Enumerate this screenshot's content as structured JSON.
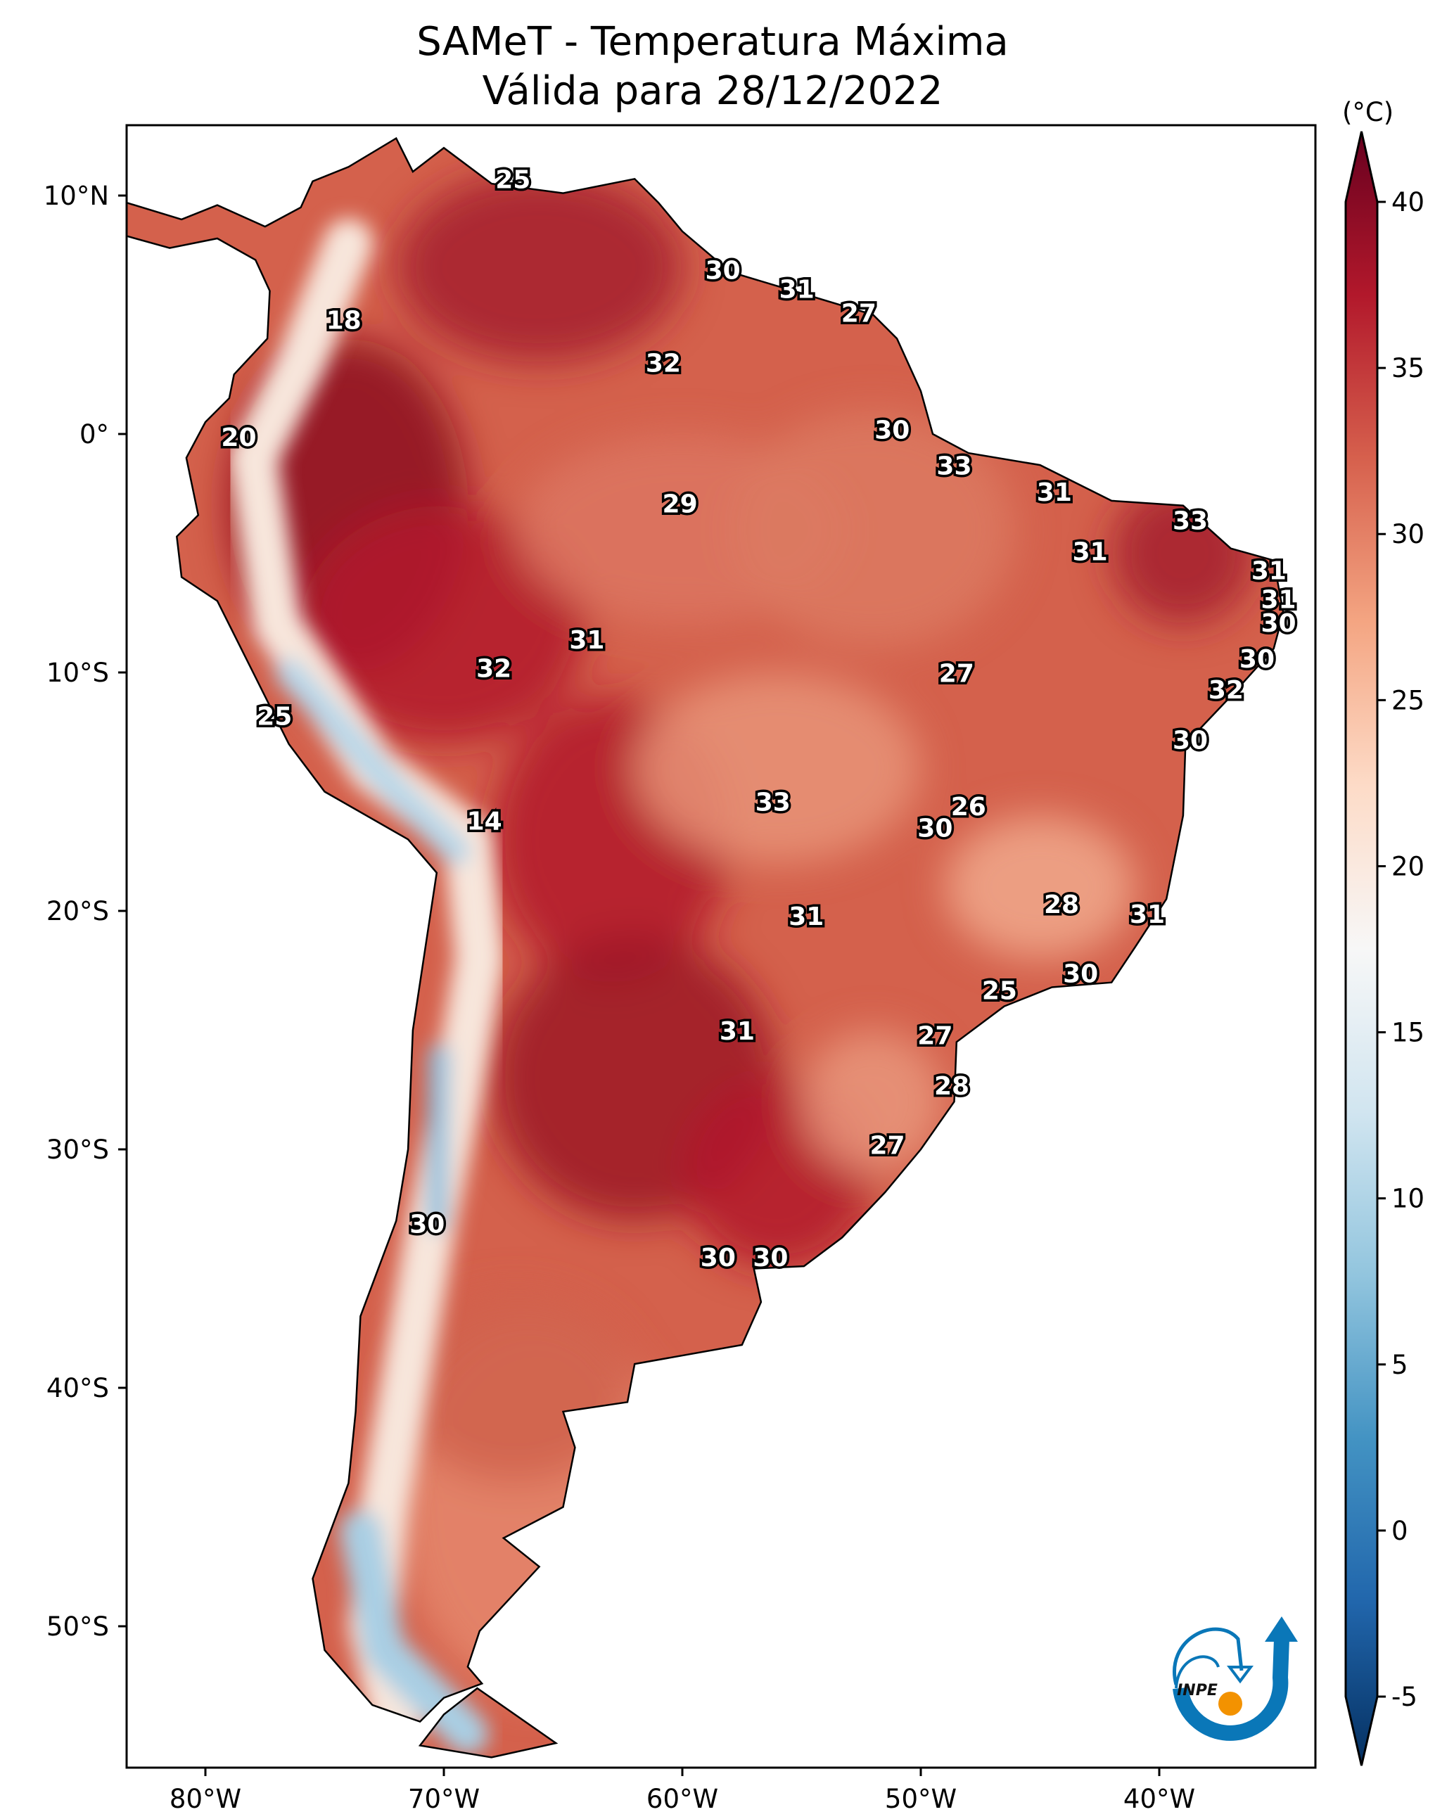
{
  "title_line1": "SAMeT - Temperatura Máxima",
  "title_line2": "Válida para 28/12/2022",
  "chart_data": {
    "type": "heatmap",
    "variable": "Temperatura Máxima",
    "units_label": "(°C)",
    "extent_lon": [
      -83.3,
      -33.5
    ],
    "extent_lat": [
      -55.9,
      13.0
    ],
    "x_ticks": [
      {
        "value": -80,
        "label": "80°W"
      },
      {
        "value": -70,
        "label": "70°W"
      },
      {
        "value": -60,
        "label": "60°W"
      },
      {
        "value": -50,
        "label": "50°W"
      },
      {
        "value": -40,
        "label": "40°W"
      }
    ],
    "y_ticks": [
      {
        "value": 10,
        "label": "10°N"
      },
      {
        "value": 0,
        "label": "0°"
      },
      {
        "value": -10,
        "label": "10°S"
      },
      {
        "value": -20,
        "label": "20°S"
      },
      {
        "value": -30,
        "label": "30°S"
      },
      {
        "value": -40,
        "label": "40°S"
      },
      {
        "value": -50,
        "label": "50°S"
      }
    ],
    "colorbar": {
      "range": [
        -5,
        40
      ],
      "extend": "both",
      "ticks": [
        "40",
        "35",
        "30",
        "25",
        "20",
        "15",
        "10",
        "5",
        "0",
        "-5"
      ],
      "colormap": [
        "#053061",
        "#2166ac",
        "#4393c3",
        "#92c5de",
        "#d1e5f0",
        "#f7f7f7",
        "#fddbc7",
        "#f4a582",
        "#d6604d",
        "#b2182b",
        "#67001f"
      ]
    },
    "annotations": [
      {
        "lon": -67.1,
        "lat": 10.6,
        "value": "25"
      },
      {
        "lon": -58.3,
        "lat": 6.8,
        "value": "30"
      },
      {
        "lon": -55.2,
        "lat": 6.0,
        "value": "31"
      },
      {
        "lon": -52.6,
        "lat": 5.0,
        "value": "27"
      },
      {
        "lon": -74.2,
        "lat": 4.7,
        "value": "18"
      },
      {
        "lon": -60.8,
        "lat": 2.9,
        "value": "32"
      },
      {
        "lon": -78.6,
        "lat": -0.2,
        "value": "20"
      },
      {
        "lon": -51.2,
        "lat": 0.1,
        "value": "30"
      },
      {
        "lon": -48.6,
        "lat": -1.4,
        "value": "33"
      },
      {
        "lon": -44.4,
        "lat": -2.5,
        "value": "31"
      },
      {
        "lon": -60.1,
        "lat": -3.0,
        "value": "29"
      },
      {
        "lon": -38.7,
        "lat": -3.7,
        "value": "33"
      },
      {
        "lon": -42.9,
        "lat": -5.0,
        "value": "31"
      },
      {
        "lon": -35.4,
        "lat": -5.8,
        "value": "31"
      },
      {
        "lon": -35.0,
        "lat": -7.0,
        "value": "31"
      },
      {
        "lon": -35.0,
        "lat": -8.0,
        "value": "30"
      },
      {
        "lon": -64.0,
        "lat": -8.7,
        "value": "31"
      },
      {
        "lon": -35.9,
        "lat": -9.5,
        "value": "30"
      },
      {
        "lon": -67.9,
        "lat": -9.9,
        "value": "32"
      },
      {
        "lon": -48.5,
        "lat": -10.1,
        "value": "27"
      },
      {
        "lon": -37.2,
        "lat": -10.8,
        "value": "32"
      },
      {
        "lon": -77.1,
        "lat": -11.9,
        "value": "25"
      },
      {
        "lon": -38.7,
        "lat": -12.9,
        "value": "30"
      },
      {
        "lon": -56.2,
        "lat": -15.5,
        "value": "33"
      },
      {
        "lon": -48.0,
        "lat": -15.7,
        "value": "26"
      },
      {
        "lon": -68.3,
        "lat": -16.3,
        "value": "14"
      },
      {
        "lon": -49.4,
        "lat": -16.6,
        "value": "30"
      },
      {
        "lon": -44.1,
        "lat": -19.8,
        "value": "28"
      },
      {
        "lon": -40.5,
        "lat": -20.2,
        "value": "31"
      },
      {
        "lon": -54.8,
        "lat": -20.3,
        "value": "31"
      },
      {
        "lon": -43.3,
        "lat": -22.7,
        "value": "30"
      },
      {
        "lon": -46.7,
        "lat": -23.4,
        "value": "25"
      },
      {
        "lon": -57.7,
        "lat": -25.1,
        "value": "31"
      },
      {
        "lon": -49.4,
        "lat": -25.3,
        "value": "27"
      },
      {
        "lon": -48.7,
        "lat": -27.4,
        "value": "28"
      },
      {
        "lon": -51.4,
        "lat": -29.9,
        "value": "27"
      },
      {
        "lon": -70.7,
        "lat": -33.2,
        "value": "30"
      },
      {
        "lon": -58.5,
        "lat": -34.6,
        "value": "30"
      },
      {
        "lon": -56.3,
        "lat": -34.6,
        "value": "30"
      }
    ]
  },
  "logo_text": "INPE",
  "colors": {
    "logo_blue": "#0a77b8",
    "logo_orange": "#f39200"
  }
}
